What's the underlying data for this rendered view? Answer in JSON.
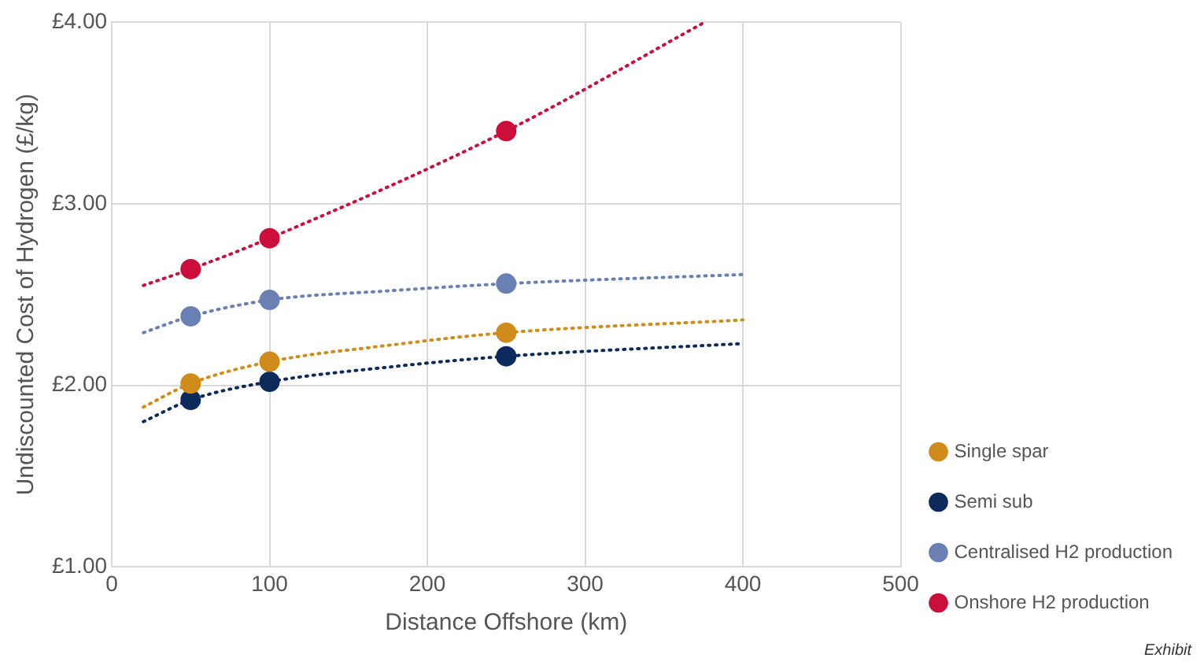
{
  "chart_data": {
    "type": "scatter",
    "xlabel": "Distance Offshore (km)",
    "ylabel": "Undiscounted Cost of Hydrogen (£/kg)",
    "xlim": [
      0,
      500
    ],
    "xticks": [
      0,
      100,
      200,
      300,
      400,
      500
    ],
    "ylim": [
      1,
      4
    ],
    "yticks": [
      {
        "value": 1,
        "label": "£1.00"
      },
      {
        "value": 2,
        "label": "£2.00"
      },
      {
        "value": 3,
        "label": "£3.00"
      },
      {
        "value": 4,
        "label": "£4.00"
      }
    ],
    "grid": true,
    "legend": "bottom right",
    "marker": "circle",
    "annotations": [
      "Exhibit"
    ],
    "series": [
      {
        "name": "Single spar",
        "type": "scatter",
        "color": "#d08c1a",
        "x": [
          50,
          100,
          250
        ],
        "values": [
          2.01,
          2.13,
          2.29
        ]
      },
      {
        "name": "Semi sub",
        "type": "scatter",
        "color": "#0d2a5c",
        "x": [
          50,
          100,
          250
        ],
        "values": [
          1.92,
          2.02,
          2.16
        ]
      },
      {
        "name": "Centralised H2 production",
        "type": "scatter",
        "color": "#6a80b4",
        "x": [
          50,
          100,
          250
        ],
        "values": [
          2.38,
          2.47,
          2.56
        ]
      },
      {
        "name": "Onshore H2 production",
        "type": "scatter",
        "color": "#cc0e3c",
        "x": [
          50,
          100,
          250
        ],
        "values": [
          2.64,
          2.81,
          3.4
        ]
      },
      {
        "type": "line",
        "color": "#d08c1a",
        "line_style": "dotted",
        "marker": "none",
        "x": [
          20,
          50,
          100,
          175,
          250,
          400
        ],
        "values": [
          1.88,
          2.01,
          2.13,
          2.22,
          2.29,
          2.36
        ]
      },
      {
        "type": "line",
        "color": "#0d2a5c",
        "line_style": "dotted",
        "marker": "none",
        "x": [
          20,
          50,
          100,
          175,
          250,
          400
        ],
        "values": [
          1.8,
          1.92,
          2.02,
          2.1,
          2.16,
          2.23
        ]
      },
      {
        "type": "line",
        "color": "#6a80b4",
        "line_style": "dotted",
        "marker": "none",
        "x": [
          20,
          50,
          100,
          175,
          250,
          400
        ],
        "values": [
          2.29,
          2.38,
          2.47,
          2.52,
          2.56,
          2.61
        ]
      },
      {
        "type": "line",
        "color": "#cc0e3c",
        "line_style": "dotted",
        "marker": "none",
        "x": [
          20,
          50,
          100,
          250,
          376
        ],
        "values": [
          2.55,
          2.64,
          2.81,
          3.4,
          4.0
        ]
      }
    ]
  }
}
